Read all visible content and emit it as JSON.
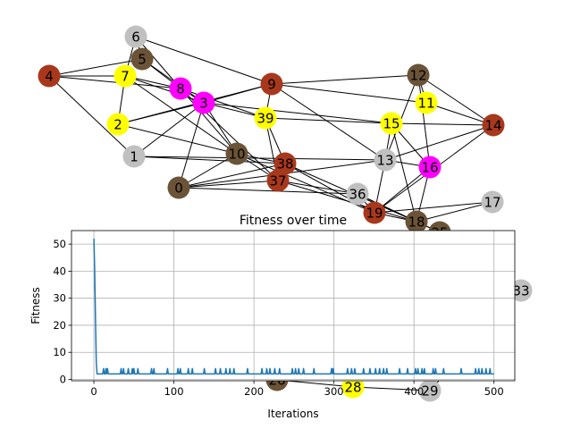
{
  "graph": {
    "nodes": [
      {
        "id": "0",
        "color": "#6b5338"
      },
      {
        "id": "1",
        "color": "#c0c0c0"
      },
      {
        "id": "2",
        "color": "#ffff00"
      },
      {
        "id": "3",
        "color": "#ff00ff"
      },
      {
        "id": "4",
        "color": "#a8381c"
      },
      {
        "id": "5",
        "color": "#6b5338"
      },
      {
        "id": "6",
        "color": "#c0c0c0"
      },
      {
        "id": "7",
        "color": "#ffff00"
      },
      {
        "id": "8",
        "color": "#ff00ff"
      },
      {
        "id": "9",
        "color": "#a8381c"
      },
      {
        "id": "10",
        "color": "#6b5338"
      },
      {
        "id": "11",
        "color": "#ffff00"
      },
      {
        "id": "12",
        "color": "#6b5338"
      },
      {
        "id": "13",
        "color": "#c0c0c0"
      },
      {
        "id": "14",
        "color": "#a8381c"
      },
      {
        "id": "15",
        "color": "#ffff00"
      },
      {
        "id": "16",
        "color": "#ff00ff"
      },
      {
        "id": "17",
        "color": "#c0c0c0"
      },
      {
        "id": "18",
        "color": "#6b5338"
      },
      {
        "id": "19",
        "color": "#a8381c"
      },
      {
        "id": "25",
        "color": "#6b5338"
      },
      {
        "id": "26",
        "color": "#6b5338"
      },
      {
        "id": "28",
        "color": "#ffff00"
      },
      {
        "id": "29",
        "color": "#c0c0c0"
      },
      {
        "id": "33",
        "color": "#c0c0c0"
      },
      {
        "id": "36",
        "color": "#c0c0c0"
      },
      {
        "id": "37",
        "color": "#a8381c"
      },
      {
        "id": "38",
        "color": "#a8381c"
      },
      {
        "id": "39",
        "color": "#ffff00"
      }
    ],
    "edges": [
      [
        "6",
        "5"
      ],
      [
        "6",
        "7"
      ],
      [
        "6",
        "8"
      ],
      [
        "6",
        "9"
      ],
      [
        "5",
        "4"
      ],
      [
        "5",
        "3"
      ],
      [
        "5",
        "8"
      ],
      [
        "4",
        "7"
      ],
      [
        "4",
        "8"
      ],
      [
        "4",
        "1"
      ],
      [
        "7",
        "8"
      ],
      [
        "7",
        "3"
      ],
      [
        "7",
        "10"
      ],
      [
        "8",
        "3"
      ],
      [
        "8",
        "39"
      ],
      [
        "8",
        "10"
      ],
      [
        "8",
        "37"
      ],
      [
        "3",
        "9"
      ],
      [
        "3",
        "2"
      ],
      [
        "3",
        "0"
      ],
      [
        "3",
        "39"
      ],
      [
        "3",
        "10"
      ],
      [
        "3",
        "15"
      ],
      [
        "2",
        "7"
      ],
      [
        "2",
        "9"
      ],
      [
        "2",
        "10"
      ],
      [
        "1",
        "13"
      ],
      [
        "1",
        "38"
      ],
      [
        "1",
        "3"
      ],
      [
        "0",
        "10"
      ],
      [
        "0",
        "38"
      ],
      [
        "0",
        "36"
      ],
      [
        "0",
        "37"
      ],
      [
        "0",
        "13"
      ],
      [
        "10",
        "38"
      ],
      [
        "10",
        "19"
      ],
      [
        "10",
        "37"
      ],
      [
        "9",
        "12"
      ],
      [
        "9",
        "11"
      ],
      [
        "9",
        "39"
      ],
      [
        "9",
        "13"
      ],
      [
        "39",
        "15"
      ],
      [
        "39",
        "38"
      ],
      [
        "39",
        "37"
      ],
      [
        "12",
        "11"
      ],
      [
        "12",
        "14"
      ],
      [
        "12",
        "13"
      ],
      [
        "12",
        "16"
      ],
      [
        "11",
        "14"
      ],
      [
        "15",
        "14"
      ],
      [
        "15",
        "13"
      ],
      [
        "15",
        "16"
      ],
      [
        "15",
        "18"
      ],
      [
        "14",
        "13"
      ],
      [
        "14",
        "19"
      ],
      [
        "13",
        "16"
      ],
      [
        "13",
        "19"
      ],
      [
        "16",
        "18"
      ],
      [
        "16",
        "19"
      ],
      [
        "17",
        "18"
      ],
      [
        "17",
        "19"
      ],
      [
        "36",
        "18"
      ],
      [
        "36",
        "19"
      ],
      [
        "36",
        "25"
      ],
      [
        "37",
        "18"
      ],
      [
        "37",
        "36"
      ],
      [
        "38",
        "18"
      ],
      [
        "38",
        "19"
      ],
      [
        "19",
        "18"
      ],
      [
        "18",
        "25"
      ],
      [
        "28",
        "29"
      ],
      [
        "26",
        "28"
      ],
      [
        "29",
        "33"
      ]
    ]
  },
  "chart_data": {
    "type": "line",
    "title": "Fitness over time",
    "xlabel": "Iterations",
    "ylabel": "Fitness",
    "xlim": [
      -28,
      526
    ],
    "ylim": [
      -0.5,
      55
    ],
    "xticks": [
      0,
      100,
      200,
      300,
      400,
      500
    ],
    "yticks": [
      0,
      10,
      20,
      30,
      40,
      50
    ],
    "grid": true,
    "series": [
      {
        "color": "#1f77b4",
        "start": [
          [
            0,
            52
          ],
          [
            1,
            40
          ],
          [
            2,
            22
          ],
          [
            3,
            6
          ],
          [
            4,
            2
          ]
        ],
        "iterations": 500,
        "baseline": 2,
        "spike_value": 4,
        "spike_iterations": [
          12,
          15,
          17,
          34,
          37,
          43,
          48,
          50,
          55,
          72,
          75,
          92,
          105,
          108,
          118,
          123,
          138,
          152,
          158,
          165,
          170,
          175,
          192,
          210,
          216,
          220,
          226,
          232,
          248,
          252,
          256,
          262,
          275,
          297,
          299,
          317,
          322,
          326,
          337,
          345,
          352,
          357,
          362,
          366,
          382,
          392,
          402,
          405,
          410,
          413,
          424,
          427,
          437,
          459,
          477,
          481,
          485,
          490,
          495
        ]
      }
    ]
  }
}
